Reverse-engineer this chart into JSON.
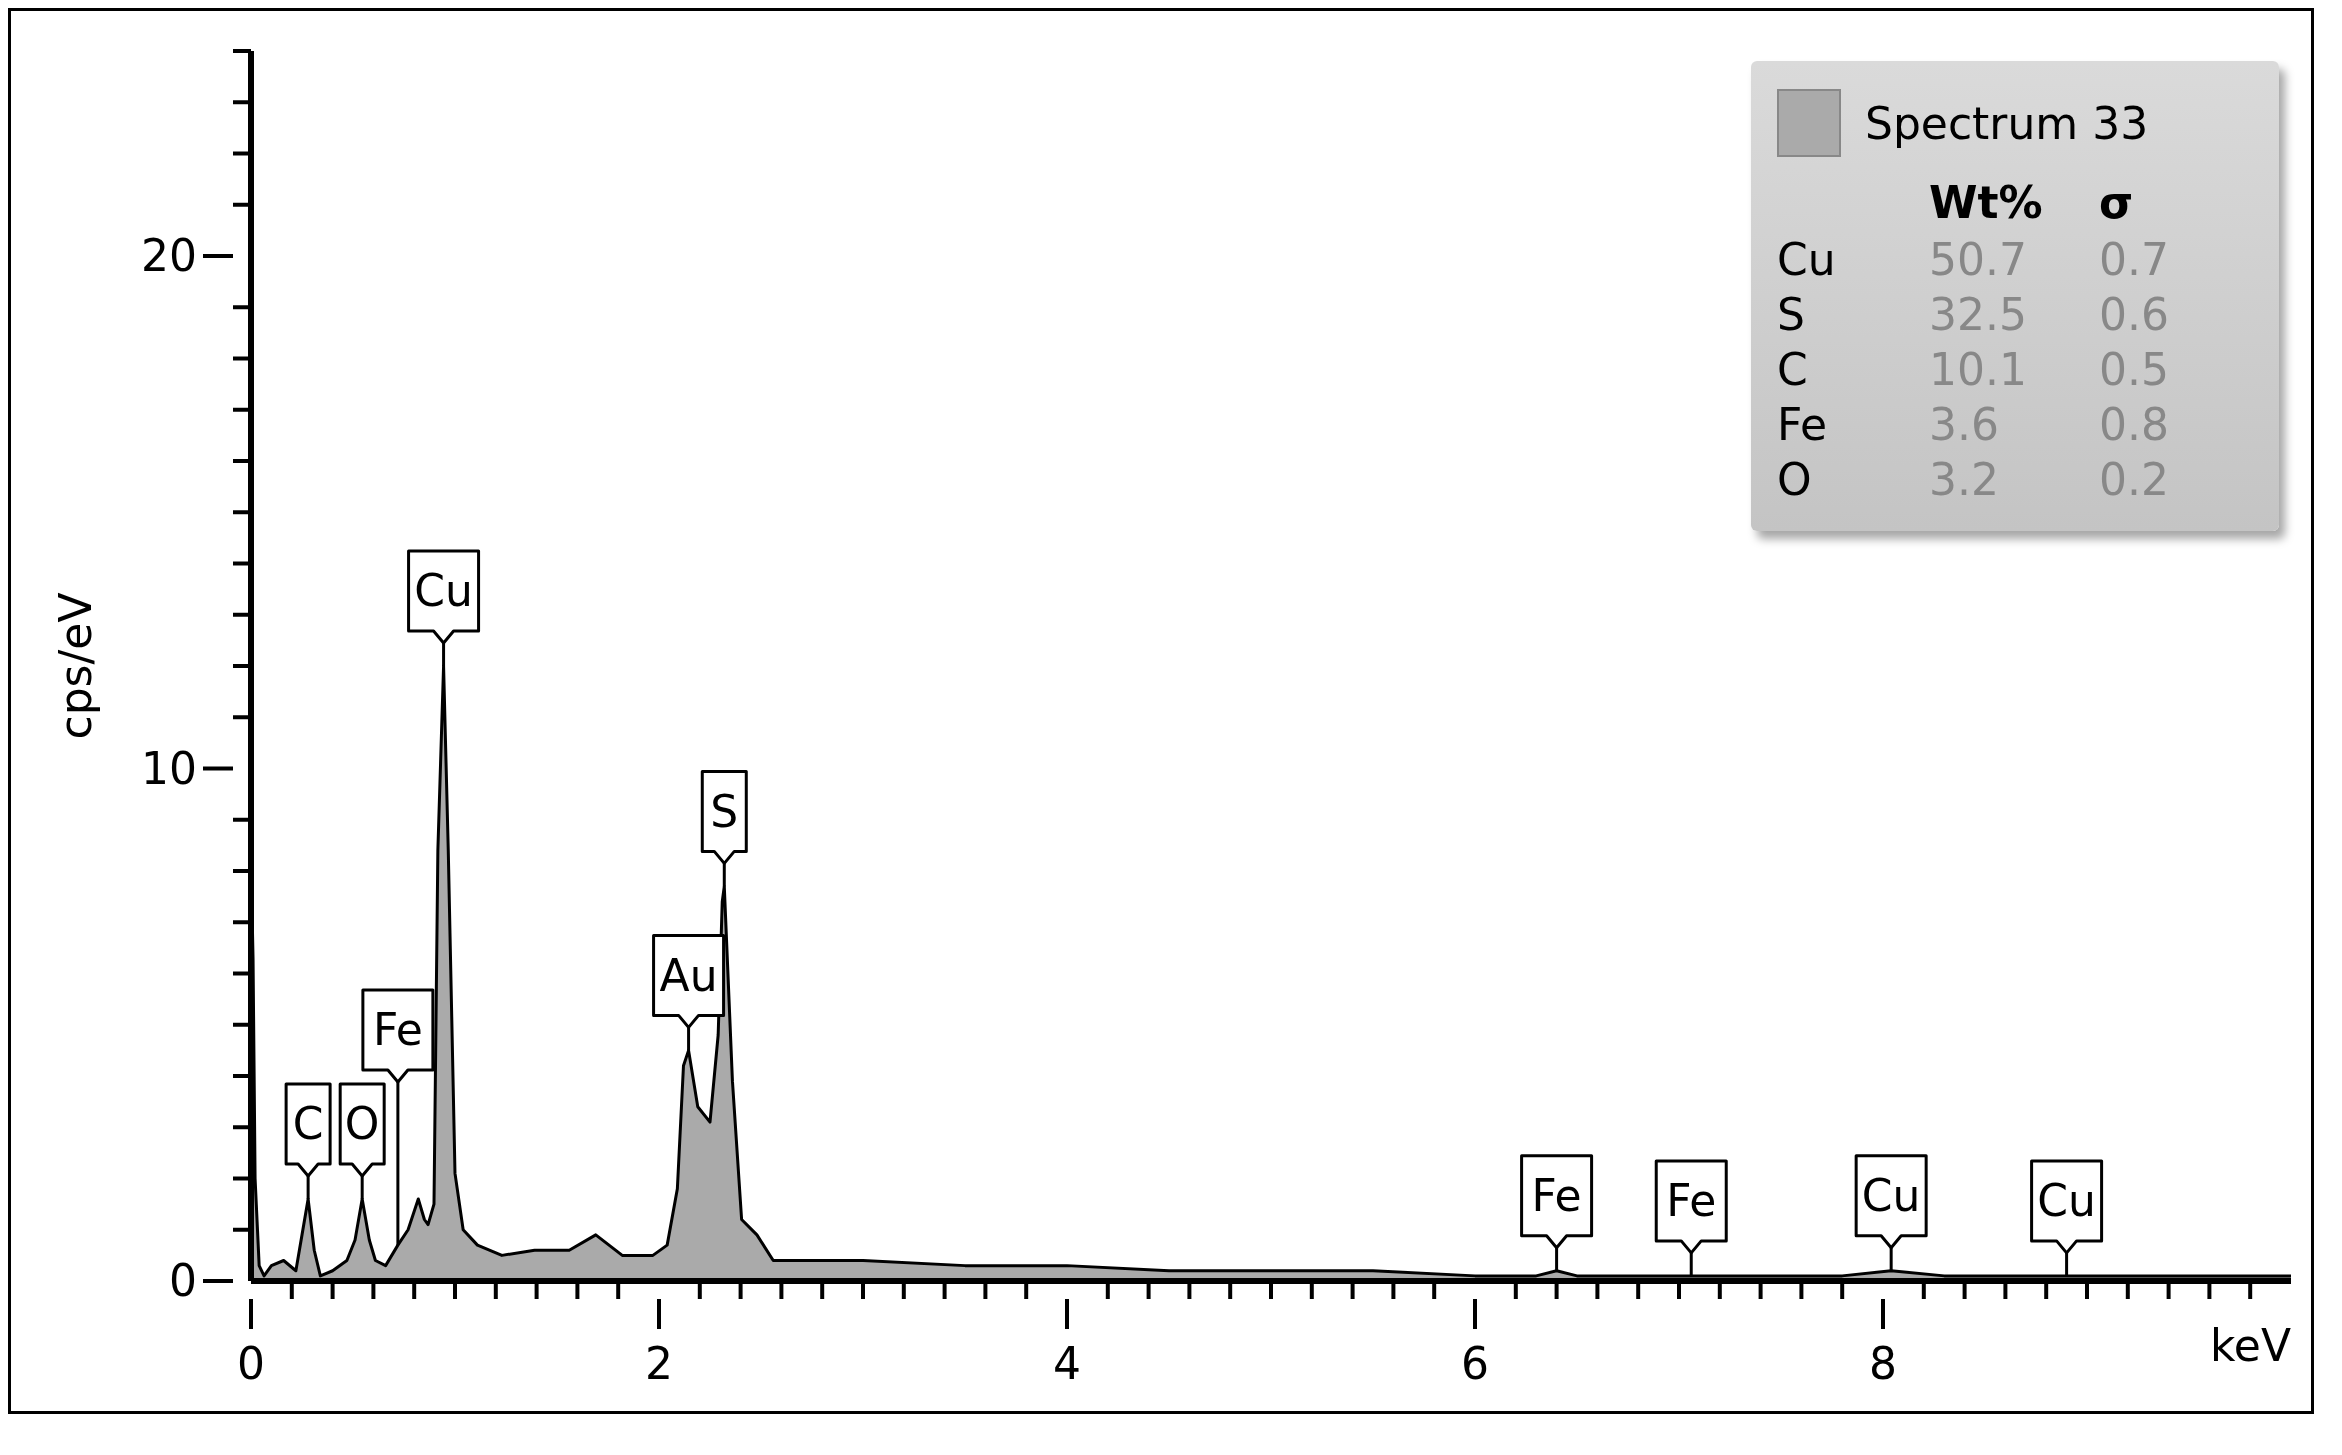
{
  "chart_data": {
    "type": "area",
    "xlabel": "keV",
    "ylabel": "cps/eV",
    "x": [
      0,
      0.01,
      0.02,
      0.04,
      0.064,
      0.1,
      0.16,
      0.22,
      0.25,
      0.28,
      0.31,
      0.34,
      0.4,
      0.47,
      0.51,
      0.545,
      0.58,
      0.61,
      0.66,
      0.72,
      0.77,
      0.82,
      0.85,
      0.868,
      0.897,
      0.916,
      0.944,
      0.967,
      1.0,
      1.04,
      1.11,
      1.23,
      1.39,
      1.56,
      1.69,
      1.82,
      1.97,
      2.04,
      2.09,
      2.12,
      2.145,
      2.19,
      2.25,
      2.29,
      2.31,
      2.32,
      2.36,
      2.405,
      2.48,
      2.56,
      2.7,
      3.0,
      3.5,
      4.0,
      4.5,
      5.0,
      5.5,
      6.0,
      6.3,
      6.4,
      6.5,
      6.8,
      7.06,
      7.3,
      7.8,
      8.04,
      8.3,
      8.9,
      9.5,
      10
    ],
    "series": [
      {
        "name": "Spectrum 33",
        "color": "#aaaaaa",
        "values": [
          8.2,
          6.3,
          2.0,
          0.3,
          0.1,
          0.3,
          0.4,
          0.2,
          0.9,
          1.6,
          0.6,
          0.1,
          0.2,
          0.4,
          0.8,
          1.6,
          0.8,
          0.4,
          0.3,
          0.7,
          1.0,
          1.6,
          1.2,
          1.1,
          1.5,
          8.4,
          12.0,
          8.4,
          2.1,
          1.0,
          0.7,
          0.5,
          0.6,
          0.6,
          0.9,
          0.5,
          0.5,
          0.7,
          1.8,
          4.2,
          4.5,
          3.4,
          3.1,
          4.8,
          7.4,
          7.7,
          3.9,
          1.2,
          0.9,
          0.4,
          0.4,
          0.4,
          0.3,
          0.3,
          0.2,
          0.2,
          0.2,
          0.1,
          0.1,
          0.2,
          0.1,
          0.1,
          0.1,
          0.1,
          0.1,
          0.2,
          0.1,
          0.1,
          0.1,
          0.1
        ]
      }
    ],
    "xlim": [
      0,
      10
    ],
    "ylim": [
      0,
      24
    ],
    "xticks": [
      0,
      2,
      4,
      6,
      8
    ],
    "yticks": [
      0,
      10,
      20
    ],
    "grid": false,
    "legend": "top right",
    "marker": "none",
    "line_style": "solid",
    "annotations": [
      {
        "text": "C",
        "x": 0.28,
        "y": 1.6
      },
      {
        "text": "O",
        "x": 0.545,
        "y": 1.6
      },
      {
        "text": "Fe",
        "x": 0.72,
        "y": 0.7
      },
      {
        "text": "Cu",
        "x": 0.944,
        "y": 12.0
      },
      {
        "text": "Au",
        "x": 2.145,
        "y": 4.5
      },
      {
        "text": "S",
        "x": 2.32,
        "y": 7.7
      },
      {
        "text": "Fe",
        "x": 6.4,
        "y": 0.2
      },
      {
        "text": "Fe",
        "x": 7.06,
        "y": 0.1
      },
      {
        "text": "Cu",
        "x": 8.04,
        "y": 0.2
      },
      {
        "text": "Cu",
        "x": 8.9,
        "y": 0.1
      },
      "Wt%",
      "σ",
      "Cu",
      "50.7",
      "0.7",
      "S",
      "32.5",
      "0.6",
      "C",
      "10.1",
      "0.5",
      "Fe",
      "3.6",
      "0.8",
      "O",
      "3.2",
      "0.2"
    ]
  }
}
